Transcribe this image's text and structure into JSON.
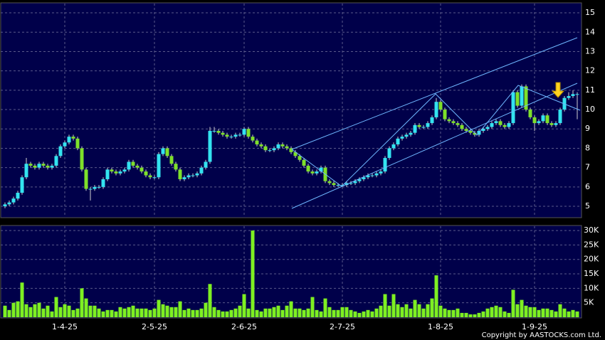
{
  "chart_data": {
    "type": "candlestick",
    "categories": [
      null,
      null,
      null,
      null,
      null,
      null,
      null,
      null,
      null,
      null,
      null,
      null,
      null,
      null,
      "1-4-25",
      null,
      null,
      null,
      null,
      null,
      null,
      null,
      null,
      null,
      null,
      null,
      null,
      null,
      null,
      null,
      null,
      null,
      null,
      null,
      null,
      "2-5-25",
      null,
      null,
      null,
      null,
      null,
      null,
      null,
      null,
      null,
      null,
      null,
      null,
      null,
      null,
      null,
      null,
      null,
      null,
      null,
      null,
      "2-6-25",
      null,
      null,
      null,
      null,
      null,
      null,
      null,
      null,
      null,
      null,
      null,
      null,
      null,
      null,
      null,
      null,
      null,
      null,
      null,
      null,
      null,
      null,
      "2-7-25",
      null,
      null,
      null,
      null,
      null,
      null,
      null,
      null,
      null,
      null,
      null,
      null,
      null,
      null,
      null,
      null,
      null,
      null,
      null,
      null,
      null,
      null,
      "1-8-25",
      null,
      null,
      null,
      null,
      null,
      null,
      null,
      null,
      null,
      null,
      null,
      null,
      null,
      null,
      null,
      null,
      null,
      null,
      null,
      null,
      null,
      "1-9-25",
      null,
      null,
      null,
      null,
      null,
      null,
      null,
      null,
      null,
      null
    ],
    "open": [
      5.0,
      5.1,
      5.2,
      5.4,
      5.7,
      6.5,
      7.2,
      7.1,
      7.0,
      7.2,
      7.1,
      7.0,
      7.1,
      7.6,
      8.1,
      8.3,
      8.6,
      8.5,
      8.0,
      6.9,
      5.9,
      5.9,
      6.0,
      6.0,
      6.4,
      6.9,
      6.8,
      6.7,
      6.8,
      6.9,
      7.3,
      7.1,
      7.0,
      6.8,
      6.6,
      6.5,
      6.5,
      7.7,
      8.0,
      7.6,
      7.2,
      6.9,
      6.4,
      6.5,
      6.6,
      6.6,
      6.7,
      7.0,
      7.3,
      8.9,
      8.9,
      8.8,
      8.7,
      8.6,
      8.6,
      8.7,
      8.7,
      9.0,
      8.6,
      8.4,
      8.2,
      8.1,
      7.9,
      7.9,
      8.0,
      8.2,
      8.1,
      8.0,
      7.8,
      7.6,
      7.4,
      7.1,
      6.8,
      6.7,
      6.8,
      7.0,
      6.3,
      6.2,
      6.1,
      6.1,
      6.1,
      6.2,
      6.2,
      6.3,
      6.4,
      6.5,
      6.6,
      6.6,
      6.7,
      6.8,
      7.5,
      8.0,
      8.2,
      8.5,
      8.6,
      8.7,
      8.8,
      9.2,
      9.1,
      9.1,
      9.3,
      9.6,
      10.4,
      10.0,
      9.5,
      9.4,
      9.3,
      9.2,
      9.0,
      8.9,
      8.8,
      8.7,
      8.9,
      9.0,
      9.1,
      9.3,
      9.4,
      9.2,
      9.1,
      9.3,
      10.9,
      10.2,
      11.2,
      10.0,
      9.6,
      9.3,
      9.4,
      9.7,
      9.3,
      9.2,
      9.3,
      10.0,
      10.6,
      10.7,
      10.8
    ],
    "high": [
      5.2,
      5.3,
      5.5,
      5.8,
      6.6,
      7.5,
      7.3,
      7.2,
      7.3,
      7.3,
      7.2,
      7.2,
      7.7,
      8.2,
      8.4,
      8.7,
      8.7,
      8.6,
      8.1,
      7.0,
      6.0,
      6.1,
      6.1,
      6.5,
      7.0,
      7.0,
      6.9,
      6.9,
      7.0,
      7.4,
      7.4,
      7.2,
      7.1,
      6.9,
      6.7,
      6.6,
      7.8,
      8.1,
      8.1,
      7.7,
      7.3,
      7.0,
      6.6,
      6.7,
      6.7,
      6.8,
      7.1,
      7.4,
      9.1,
      9.1,
      9.0,
      8.9,
      8.8,
      8.7,
      8.8,
      8.8,
      9.1,
      9.1,
      8.7,
      8.5,
      8.3,
      8.2,
      8.0,
      8.1,
      8.3,
      8.3,
      8.2,
      8.1,
      7.9,
      7.7,
      7.5,
      7.2,
      6.9,
      6.9,
      7.1,
      7.1,
      6.4,
      6.3,
      6.2,
      6.2,
      6.3,
      6.3,
      6.4,
      6.5,
      6.6,
      6.7,
      6.7,
      6.8,
      6.9,
      7.6,
      8.1,
      8.3,
      8.6,
      8.7,
      8.8,
      8.9,
      9.3,
      9.3,
      9.2,
      9.4,
      9.7,
      10.6,
      10.5,
      10.1,
      9.6,
      9.5,
      9.4,
      9.3,
      9.1,
      9.0,
      8.9,
      9.0,
      9.1,
      9.2,
      9.4,
      9.5,
      9.5,
      9.3,
      9.4,
      11.0,
      11.0,
      11.3,
      11.3,
      10.1,
      9.7,
      9.5,
      9.8,
      9.8,
      9.4,
      9.4,
      10.1,
      10.7,
      10.9,
      11.0,
      10.9
    ],
    "low": [
      4.9,
      5.0,
      5.1,
      5.3,
      5.6,
      6.4,
      7.0,
      6.9,
      6.9,
      7.0,
      6.9,
      6.9,
      7.0,
      7.5,
      8.0,
      8.2,
      8.4,
      7.9,
      6.8,
      5.8,
      5.3,
      5.8,
      5.9,
      5.9,
      6.3,
      6.7,
      6.6,
      6.6,
      6.7,
      6.8,
      7.0,
      6.9,
      6.7,
      6.5,
      6.4,
      6.4,
      6.4,
      7.6,
      7.5,
      7.1,
      6.8,
      6.3,
      6.3,
      6.4,
      6.5,
      6.5,
      6.6,
      6.9,
      7.2,
      8.8,
      8.7,
      8.6,
      8.5,
      8.5,
      8.5,
      8.6,
      8.6,
      8.5,
      8.3,
      8.1,
      8.0,
      7.8,
      7.8,
      7.8,
      7.9,
      8.0,
      7.9,
      7.7,
      7.5,
      7.3,
      7.0,
      6.7,
      6.6,
      6.6,
      6.7,
      6.2,
      6.1,
      6.0,
      6.0,
      6.0,
      6.0,
      6.1,
      6.1,
      6.2,
      6.3,
      6.4,
      6.5,
      6.5,
      6.6,
      6.7,
      7.4,
      7.9,
      8.1,
      8.4,
      8.5,
      8.6,
      8.7,
      9.0,
      9.0,
      9.0,
      9.2,
      9.5,
      9.9,
      9.4,
      9.3,
      9.2,
      9.1,
      8.9,
      8.8,
      8.7,
      8.6,
      8.6,
      8.8,
      8.9,
      9.0,
      9.2,
      9.1,
      9.0,
      9.0,
      9.2,
      10.1,
      10.1,
      9.9,
      9.5,
      8.9,
      9.2,
      9.3,
      9.2,
      9.1,
      9.1,
      9.2,
      9.9,
      10.5,
      10.6,
      9.5
    ],
    "close": [
      5.1,
      5.2,
      5.4,
      5.7,
      6.5,
      7.2,
      7.1,
      7.0,
      7.2,
      7.1,
      7.0,
      7.1,
      7.6,
      8.1,
      8.3,
      8.6,
      8.5,
      8.0,
      6.9,
      5.9,
      5.9,
      6.0,
      6.0,
      6.4,
      6.9,
      6.8,
      6.7,
      6.8,
      6.9,
      7.3,
      7.1,
      7.0,
      6.8,
      6.6,
      6.5,
      6.5,
      7.7,
      8.0,
      7.6,
      7.2,
      6.9,
      6.4,
      6.5,
      6.6,
      6.6,
      6.7,
      7.0,
      7.3,
      8.9,
      8.9,
      8.8,
      8.7,
      8.6,
      8.6,
      8.7,
      8.7,
      9.0,
      8.6,
      8.4,
      8.2,
      8.1,
      7.9,
      7.9,
      8.0,
      8.2,
      8.1,
      8.0,
      7.8,
      7.6,
      7.4,
      7.1,
      6.8,
      6.7,
      6.8,
      7.0,
      6.3,
      6.2,
      6.1,
      6.1,
      6.1,
      6.2,
      6.2,
      6.3,
      6.4,
      6.5,
      6.6,
      6.6,
      6.7,
      6.8,
      7.5,
      8.0,
      8.2,
      8.5,
      8.6,
      8.7,
      8.8,
      9.2,
      9.1,
      9.1,
      9.3,
      9.6,
      10.4,
      10.0,
      9.5,
      9.4,
      9.3,
      9.2,
      9.0,
      8.9,
      8.8,
      8.7,
      8.9,
      9.0,
      9.1,
      9.3,
      9.4,
      9.2,
      9.1,
      9.3,
      10.9,
      10.2,
      11.2,
      10.0,
      9.6,
      9.3,
      9.4,
      9.7,
      9.3,
      9.2,
      9.3,
      10.0,
      10.6,
      10.7,
      10.8,
      10.8
    ],
    "up_color": "#33e3f0",
    "down_color": "#7ee02a",
    "ylim": [
      4.45,
      15.48
    ],
    "yticks": [
      5,
      6,
      7,
      8,
      9,
      10,
      11,
      12,
      13,
      14,
      15
    ],
    "grid": true,
    "volume": {
      "color": "#7ef022",
      "values": [
        4000,
        2500,
        5000,
        5500,
        12000,
        4500,
        3500,
        4500,
        5000,
        3000,
        4000,
        2000,
        7000,
        3500,
        4500,
        4000,
        2500,
        3000,
        10000,
        6500,
        4000,
        4000,
        3000,
        2000,
        2500,
        2500,
        2000,
        3500,
        3000,
        3500,
        4000,
        3000,
        3000,
        3000,
        2500,
        3000,
        6000,
        4500,
        4000,
        3500,
        3500,
        5500,
        2500,
        3000,
        2500,
        2500,
        3000,
        5000,
        11500,
        3500,
        2500,
        2000,
        2000,
        2500,
        3000,
        4000,
        8000,
        3000,
        30000,
        2500,
        2000,
        3000,
        3000,
        3500,
        4000,
        2500,
        4000,
        5500,
        3000,
        3000,
        2500,
        3000,
        7000,
        2500,
        2000,
        6500,
        3500,
        2500,
        2500,
        3500,
        3500,
        2500,
        2000,
        1500,
        2000,
        2500,
        2000,
        3000,
        4000,
        8000,
        4000,
        8000,
        4500,
        3500,
        4500,
        3000,
        6000,
        4500,
        3000,
        4500,
        6500,
        14500,
        4000,
        3000,
        2500,
        2500,
        3000,
        1500,
        1500,
        1000,
        1000,
        1500,
        2000,
        3000,
        3500,
        4000,
        3500,
        2000,
        1500,
        9500,
        4500,
        6000,
        4000,
        3500,
        3500,
        2500,
        3000,
        3000,
        2500,
        2000,
        4500,
        3000,
        2000,
        2500,
        2000
      ],
      "ylim": [
        0,
        31500
      ],
      "yticks": [
        {
          "value": 5000,
          "label": "5K"
        },
        {
          "value": 10000,
          "label": "10K"
        },
        {
          "value": 15000,
          "label": "15K"
        },
        {
          "value": 20000,
          "label": "20K"
        },
        {
          "value": 25000,
          "label": "25K"
        },
        {
          "value": 30000,
          "label": "30K"
        }
      ]
    },
    "footer": "Copyright by AASTOCKS.com Ltd."
  }
}
